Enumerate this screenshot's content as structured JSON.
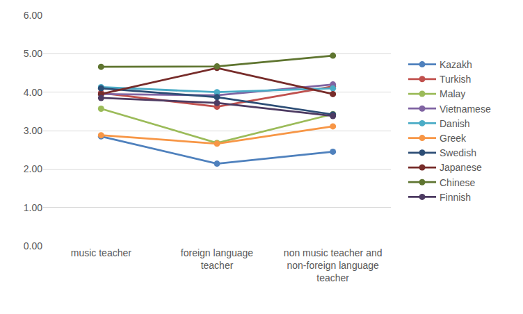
{
  "chart_data": {
    "type": "line",
    "categories": [
      "music teacher",
      "foreign language teacher",
      "non music teacher and non-foreign language teacher"
    ],
    "series": [
      {
        "name": "Kazakh",
        "color": "#4F81BD",
        "values": [
          2.85,
          2.14,
          2.45
        ]
      },
      {
        "name": "Turkish",
        "color": "#C0504D",
        "values": [
          3.98,
          3.62,
          4.15
        ]
      },
      {
        "name": "Malay",
        "color": "#9BBB59",
        "values": [
          3.57,
          2.68,
          3.43
        ]
      },
      {
        "name": "Vietnamese",
        "color": "#8064A2",
        "values": [
          3.95,
          3.92,
          4.2
        ]
      },
      {
        "name": "Danish",
        "color": "#4BACC6",
        "values": [
          4.13,
          4.0,
          4.1
        ]
      },
      {
        "name": "Greek",
        "color": "#F79646",
        "values": [
          2.88,
          2.66,
          3.11
        ]
      },
      {
        "name": "Swedish",
        "color": "#2C4D75",
        "values": [
          4.1,
          3.87,
          3.42
        ]
      },
      {
        "name": "Japanese",
        "color": "#772C2A",
        "values": [
          3.95,
          4.63,
          3.95
        ]
      },
      {
        "name": "Chinese",
        "color": "#5F7530",
        "values": [
          4.66,
          4.67,
          4.95
        ]
      },
      {
        "name": "Finnish",
        "color": "#4D3B62",
        "values": [
          3.85,
          3.72,
          3.38
        ]
      }
    ],
    "ylim": [
      0,
      6
    ],
    "yticks": [
      {
        "value": 0,
        "label": "0.00"
      },
      {
        "value": 1,
        "label": "1.00"
      },
      {
        "value": 2,
        "label": "2.00"
      },
      {
        "value": 3,
        "label": "3.00"
      },
      {
        "value": 4,
        "label": "4.00"
      },
      {
        "value": 5,
        "label": "5.00"
      },
      {
        "value": 6,
        "label": "6.00"
      }
    ],
    "grid": true,
    "legend": "right",
    "marker": "circle",
    "line_style": "solid"
  }
}
